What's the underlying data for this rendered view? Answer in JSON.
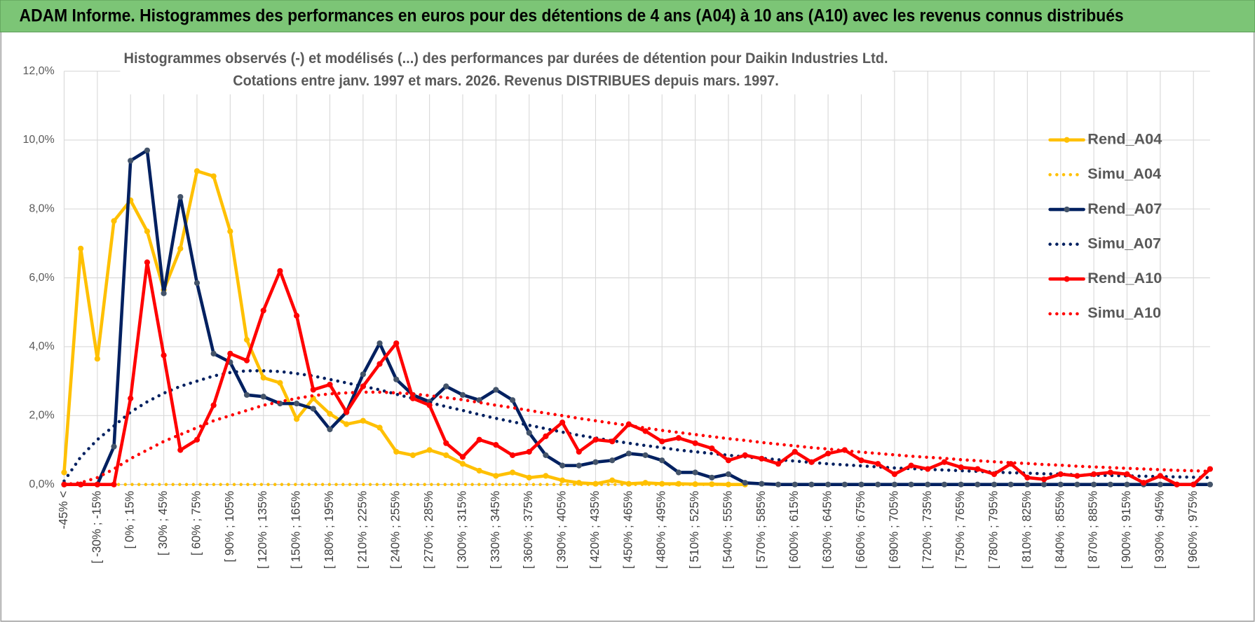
{
  "header": {
    "title": "ADAM Informe. Histogrammes des performances en euros pour des détentions de 4 ans (A04) à 10 ans (A10) avec les revenus connus distribués"
  },
  "chart_data": {
    "type": "line",
    "title": "Histogrammes observés (-) et modélisés (...) des performances par durées de détention pour Daikin Industries Ltd.",
    "subtitle": "Cotations entre janv. 1997 et mars. 2026.  Revenus DISTRIBUES depuis mars. 1997.",
    "categories": [
      "-45% <",
      null,
      "[ -30% ; -15%",
      null,
      "[ 0% ; 15%",
      null,
      "[ 30% ; 45%",
      null,
      "[ 60% ; 75%",
      null,
      "[ 90% ; 105%",
      null,
      "[ 120% ; 135%",
      null,
      "[ 150% ; 165%",
      null,
      "[ 180% ; 195%",
      null,
      "[ 210% ; 225%",
      null,
      "[ 240% ; 255%",
      null,
      "[ 270% ; 285%",
      null,
      "[ 300% ; 315%",
      null,
      "[ 330% ; 345%",
      null,
      "[ 360% ; 375%",
      null,
      "[ 390% ; 405%",
      null,
      "[ 420% ; 435%",
      null,
      "[ 450% ; 465%",
      null,
      "[ 480% ; 495%",
      null,
      "[ 510% ; 525%",
      null,
      "[ 540% ; 555%",
      null,
      "[ 570% ; 585%",
      null,
      "[ 600% ; 615%",
      null,
      "[ 630% ; 645%",
      null,
      "[ 660% ; 675%",
      null,
      "[ 690% ; 705%",
      null,
      "[ 720% ; 735%",
      null,
      "[ 750% ; 765%",
      null,
      "[ 780% ; 795%",
      null,
      "[ 810% ; 825%",
      null,
      "[ 840% ; 855%",
      null,
      "[ 870% ; 885%",
      null,
      "[ 900% ; 915%",
      null,
      "[ 930% ; 945%",
      null,
      "[ 960% ; 975%",
      null
    ],
    "series": [
      {
        "name": "Rend_A04",
        "color": "#ffc000",
        "style": "solid",
        "marker_color": "#ffc000",
        "values": [
          0.35,
          6.85,
          3.65,
          7.65,
          8.25,
          7.35,
          5.65,
          6.85,
          9.1,
          8.95,
          7.35,
          4.2,
          3.1,
          2.95,
          1.9,
          2.5,
          2.05,
          1.75,
          1.85,
          1.65,
          0.95,
          0.85,
          1.0,
          0.85,
          0.6,
          0.4,
          0.25,
          0.35,
          0.2,
          0.25,
          0.12,
          0.05,
          0.02,
          0.12,
          0.02,
          0.05,
          0.02,
          0.02,
          0.01,
          0.01,
          0,
          0,
          null,
          null,
          null,
          null,
          null,
          null,
          null,
          null,
          null,
          null,
          null,
          null,
          null,
          null,
          null,
          null,
          null,
          null,
          null,
          null,
          null,
          null,
          null,
          null,
          null,
          null,
          null,
          null
        ]
      },
      {
        "name": "Simu_A04",
        "color": "#ffc000",
        "style": "dotted",
        "values": [
          0,
          0,
          0,
          0,
          0,
          0,
          0,
          0,
          0,
          0,
          0,
          0,
          0,
          0,
          0,
          0,
          0,
          0,
          0,
          0,
          0,
          0,
          0,
          0,
          0,
          0,
          0,
          0,
          0,
          0,
          0,
          0,
          0,
          0,
          0,
          0,
          0,
          0,
          0,
          0,
          0,
          0,
          null,
          null,
          null,
          null,
          null,
          null,
          null,
          null,
          null,
          null,
          null,
          null,
          null,
          null,
          null,
          null,
          null,
          null,
          null,
          null,
          null,
          null,
          null,
          null,
          null,
          null,
          null,
          null
        ]
      },
      {
        "name": "Rend_A07",
        "color": "#002060",
        "style": "solid",
        "marker_color": "#44546a",
        "values": [
          0,
          0,
          0,
          1.1,
          9.4,
          9.7,
          5.55,
          8.35,
          5.85,
          3.8,
          3.55,
          2.6,
          2.55,
          2.35,
          2.35,
          2.2,
          1.6,
          2.1,
          3.2,
          4.1,
          3.05,
          2.6,
          2.4,
          2.85,
          2.6,
          2.45,
          2.75,
          2.45,
          1.5,
          0.85,
          0.55,
          0.55,
          0.65,
          0.7,
          0.9,
          0.85,
          0.7,
          0.35,
          0.35,
          0.2,
          0.3,
          0.05,
          0.02,
          0,
          0,
          0,
          0,
          0,
          0,
          0,
          0,
          0,
          0,
          0,
          0,
          0,
          0,
          0,
          0,
          0,
          0,
          0,
          0,
          0,
          0,
          0,
          0,
          0,
          0,
          0
        ]
      },
      {
        "name": "Simu_A07",
        "color": "#002060",
        "style": "dotted",
        "values": [
          0.1,
          0.8,
          1.3,
          1.7,
          2.1,
          2.4,
          2.65,
          2.85,
          3.0,
          3.15,
          3.25,
          3.3,
          3.3,
          3.28,
          3.22,
          3.15,
          3.05,
          2.95,
          2.85,
          2.75,
          2.62,
          2.5,
          2.38,
          2.26,
          2.15,
          2.03,
          1.92,
          1.82,
          1.72,
          1.62,
          1.52,
          1.43,
          1.35,
          1.27,
          1.2,
          1.13,
          1.07,
          1.0,
          0.95,
          0.9,
          0.85,
          0.8,
          0.76,
          0.72,
          0.68,
          0.64,
          0.6,
          0.57,
          0.54,
          0.51,
          0.48,
          0.46,
          0.44,
          0.42,
          0.4,
          0.38,
          0.36,
          0.34,
          0.33,
          0.31,
          0.3,
          0.28,
          0.27,
          0.26,
          0.25,
          0.24,
          0.23,
          0.22,
          0.21,
          0.2
        ]
      },
      {
        "name": "Rend_A10",
        "color": "#ff0000",
        "style": "solid",
        "marker_color": "#ff0000",
        "values": [
          0,
          0,
          0,
          0,
          2.5,
          6.45,
          3.75,
          1.0,
          1.3,
          2.3,
          3.8,
          3.6,
          5.05,
          6.2,
          4.9,
          2.75,
          2.9,
          2.1,
          2.85,
          3.5,
          4.1,
          2.5,
          2.3,
          1.2,
          0.8,
          1.3,
          1.15,
          0.85,
          0.95,
          1.4,
          1.8,
          0.95,
          1.3,
          1.25,
          1.75,
          1.55,
          1.25,
          1.35,
          1.2,
          1.05,
          0.7,
          0.85,
          0.75,
          0.6,
          0.95,
          0.65,
          0.9,
          1.0,
          0.7,
          0.6,
          0.3,
          0.55,
          0.45,
          0.65,
          0.5,
          0.45,
          0.3,
          0.6,
          0.2,
          0.15,
          0.3,
          0.25,
          0.3,
          0.35,
          0.3,
          0.05,
          0.25,
          0,
          0,
          0.45
        ]
      },
      {
        "name": "Simu_A10",
        "color": "#ff0000",
        "style": "dotted",
        "values": [
          0,
          0.05,
          0.2,
          0.45,
          0.75,
          1.0,
          1.25,
          1.45,
          1.65,
          1.85,
          2.0,
          2.15,
          2.3,
          2.4,
          2.5,
          2.58,
          2.63,
          2.66,
          2.68,
          2.68,
          2.66,
          2.63,
          2.58,
          2.52,
          2.46,
          2.38,
          2.3,
          2.23,
          2.15,
          2.07,
          2.0,
          1.92,
          1.85,
          1.78,
          1.71,
          1.64,
          1.57,
          1.51,
          1.45,
          1.39,
          1.33,
          1.28,
          1.22,
          1.17,
          1.12,
          1.07,
          1.03,
          0.98,
          0.94,
          0.9,
          0.86,
          0.82,
          0.79,
          0.76,
          0.72,
          0.69,
          0.66,
          0.63,
          0.61,
          0.58,
          0.56,
          0.53,
          0.51,
          0.49,
          0.47,
          0.45,
          0.43,
          0.41,
          0.4,
          0.38
        ]
      }
    ],
    "ylim": [
      0,
      12
    ],
    "yticks": [
      {
        "value": 0,
        "label": "0,0%"
      },
      {
        "value": 2,
        "label": "2,0%"
      },
      {
        "value": 4,
        "label": "4,0%"
      },
      {
        "value": 6,
        "label": "6,0%"
      },
      {
        "value": 8,
        "label": "8,0%"
      },
      {
        "value": 10,
        "label": "10,0%"
      },
      {
        "value": 12,
        "label": "12,0%"
      }
    ],
    "grid": true,
    "legend": "right"
  }
}
